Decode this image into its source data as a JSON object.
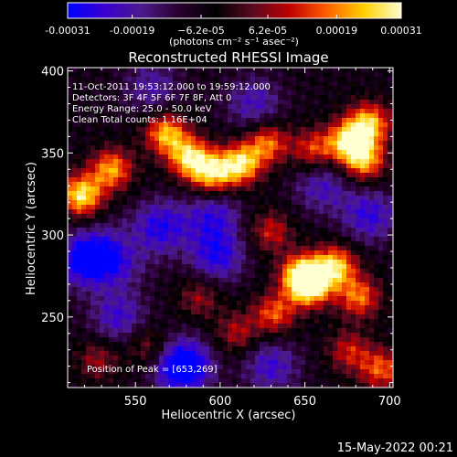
{
  "chart_data": {
    "type": "heatmap",
    "title": "Reconstructed RHESSI Image",
    "xlabel": "Heliocentric X (arcsec)",
    "ylabel": "Heliocentric Y (arcsec)",
    "xlim": [
      510,
      702
    ],
    "ylim": [
      207,
      402
    ],
    "x_ticks": [
      550,
      600,
      650,
      700
    ],
    "y_ticks": [
      250,
      300,
      350,
      400
    ],
    "colorbar": {
      "range": [
        -0.00031,
        0.00031
      ],
      "tick_values": [
        -0.00031,
        -0.00019,
        -6.2e-05,
        6.2e-05,
        0.00019,
        0.00031
      ],
      "tick_labels": [
        "-0.00031",
        "-0.00019",
        "−6.2e-05",
        "6.2e-05",
        "0.00019",
        "0.00031"
      ],
      "unit": "(photons cm⁻² s⁻¹ asec⁻²)",
      "colors": [
        "#0000ff",
        "#3a00d0",
        "#4b1a8a",
        "#2a0030",
        "#000000",
        "#5a0a20",
        "#c00000",
        "#ff6000",
        "#ffd000",
        "#ffffcf"
      ]
    },
    "info_lines": [
      "11-Oct-2011 19:53:12.000 to 19:59:12.000",
      "Detectors: 3F 4F 5F 6F 7F 8F, Att 0",
      "Energy Range: 25.0 - 50.0 keV",
      "Clean     Total counts: 1.16E+04"
    ],
    "peak_label": "Position of Peak = [653,269]",
    "peak": [
      653,
      269
    ],
    "sources": [
      {
        "x": 518,
        "y": 324,
        "amp": 1.0
      },
      {
        "x": 536,
        "y": 340,
        "amp": 0.8
      },
      {
        "x": 568,
        "y": 362,
        "amp": 0.85
      },
      {
        "x": 582,
        "y": 347,
        "amp": 0.9
      },
      {
        "x": 595,
        "y": 337,
        "amp": 0.85
      },
      {
        "x": 612,
        "y": 343,
        "amp": 0.95
      },
      {
        "x": 628,
        "y": 356,
        "amp": 0.7
      },
      {
        "x": 655,
        "y": 352,
        "amp": 0.6
      },
      {
        "x": 676,
        "y": 357,
        "amp": 0.95
      },
      {
        "x": 688,
        "y": 368,
        "amp": 0.85
      },
      {
        "x": 685,
        "y": 345,
        "amp": 0.8
      },
      {
        "x": 648,
        "y": 276,
        "amp": 0.85
      },
      {
        "x": 653,
        "y": 269,
        "amp": 1.0
      },
      {
        "x": 668,
        "y": 281,
        "amp": 0.9
      },
      {
        "x": 682,
        "y": 262,
        "amp": 0.7
      },
      {
        "x": 632,
        "y": 252,
        "amp": 0.65
      },
      {
        "x": 695,
        "y": 218,
        "amp": 0.65
      },
      {
        "x": 676,
        "y": 229,
        "amp": 0.5
      },
      {
        "x": 610,
        "y": 240,
        "amp": 0.45
      },
      {
        "x": 588,
        "y": 262,
        "amp": 0.4
      },
      {
        "x": 558,
        "y": 232,
        "amp": 0.4
      },
      {
        "x": 630,
        "y": 302,
        "amp": 0.5
      },
      {
        "x": 545,
        "y": 292,
        "amp": 0.3
      },
      {
        "x": 528,
        "y": 224,
        "amp": 0.4
      }
    ],
    "negatives": [
      {
        "x": 520,
        "y": 285,
        "amp": 0.8
      },
      {
        "x": 540,
        "y": 288,
        "amp": 0.7
      },
      {
        "x": 578,
        "y": 220,
        "amp": 1.0
      },
      {
        "x": 565,
        "y": 305,
        "amp": 0.6
      },
      {
        "x": 598,
        "y": 287,
        "amp": 0.6
      },
      {
        "x": 596,
        "y": 312,
        "amp": 0.5
      },
      {
        "x": 540,
        "y": 250,
        "amp": 0.5
      },
      {
        "x": 630,
        "y": 220,
        "amp": 0.5
      },
      {
        "x": 688,
        "y": 312,
        "amp": 0.55
      },
      {
        "x": 660,
        "y": 330,
        "amp": 0.45
      },
      {
        "x": 620,
        "y": 380,
        "amp": 0.45
      },
      {
        "x": 560,
        "y": 390,
        "amp": 0.4
      }
    ]
  },
  "timestamp": "15-May-2022 00:21"
}
